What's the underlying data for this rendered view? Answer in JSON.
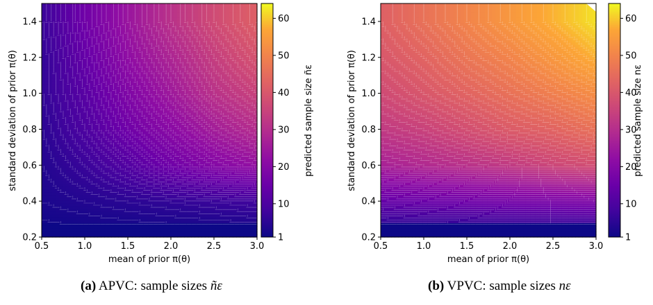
{
  "chart_data": [
    {
      "type": "heatmap",
      "panel_label": "(a)",
      "caption": "APVC: sample sizes",
      "caption_math": "ñε",
      "xlabel": "mean of prior π(θ)",
      "ylabel": "standard deviation of prior π(θ)",
      "xlim": [
        0.5,
        3.0
      ],
      "ylim": [
        0.2,
        1.5
      ],
      "xticks": [
        "0.5",
        "1.0",
        "1.5",
        "2.0",
        "2.5",
        "3.0"
      ],
      "yticks": [
        "0.2",
        "0.4",
        "0.6",
        "0.8",
        "1.0",
        "1.2",
        "1.4"
      ],
      "colorbar_label": "predicted sample size ñε",
      "colorbar_range": [
        1,
        64
      ],
      "colorbar_ticks": [
        "1",
        "10",
        "20",
        "30",
        "40",
        "50",
        "60"
      ],
      "colormap": "plasma",
      "sample_grid": {
        "x": [
          0.5,
          1.0,
          1.5,
          2.0,
          2.5,
          3.0
        ],
        "y": [
          0.2,
          0.4,
          0.6,
          0.8,
          1.0,
          1.2,
          1.4
        ],
        "values": [
          [
            1,
            1,
            1,
            1,
            1,
            1
          ],
          [
            3,
            4,
            5,
            6,
            7,
            8
          ],
          [
            4,
            7,
            11,
            16,
            20,
            23
          ],
          [
            5,
            10,
            16,
            21,
            26,
            30
          ],
          [
            6,
            12,
            19,
            25,
            31,
            35
          ],
          [
            6,
            14,
            22,
            28,
            34,
            39
          ],
          [
            7,
            16,
            24,
            31,
            37,
            42
          ]
        ]
      },
      "grid": false
    },
    {
      "type": "heatmap",
      "panel_label": "(b)",
      "caption": "VPVC: sample sizes",
      "caption_math": "nε",
      "xlabel": "mean of prior π(θ)",
      "ylabel": "standard deviation of prior π(θ)",
      "xlim": [
        0.5,
        3.0
      ],
      "ylim": [
        0.2,
        1.5
      ],
      "xticks": [
        "0.5",
        "1.0",
        "1.5",
        "2.0",
        "2.5",
        "3.0"
      ],
      "yticks": [
        "0.2",
        "0.4",
        "0.6",
        "0.8",
        "1.0",
        "1.2",
        "1.4"
      ],
      "colorbar_label": "predicted sample size nε",
      "colorbar_range": [
        1,
        64
      ],
      "colorbar_ticks": [
        "1",
        "10",
        "20",
        "30",
        "40",
        "50",
        "60"
      ],
      "colormap": "plasma",
      "sample_grid": {
        "x": [
          0.5,
          1.0,
          1.5,
          2.0,
          2.5,
          3.0
        ],
        "y": [
          0.2,
          0.4,
          0.6,
          0.8,
          1.0,
          1.2,
          1.4
        ],
        "values": [
          [
            1,
            1,
            1,
            1,
            1,
            1
          ],
          [
            14,
            15,
            16,
            17,
            18,
            19
          ],
          [
            27,
            29,
            31,
            33,
            36,
            38
          ],
          [
            33,
            35,
            38,
            41,
            43,
            46
          ],
          [
            37,
            40,
            43,
            46,
            49,
            52
          ],
          [
            40,
            43,
            47,
            50,
            54,
            58
          ],
          [
            42,
            46,
            50,
            54,
            58,
            62
          ]
        ]
      },
      "grid": false
    }
  ]
}
